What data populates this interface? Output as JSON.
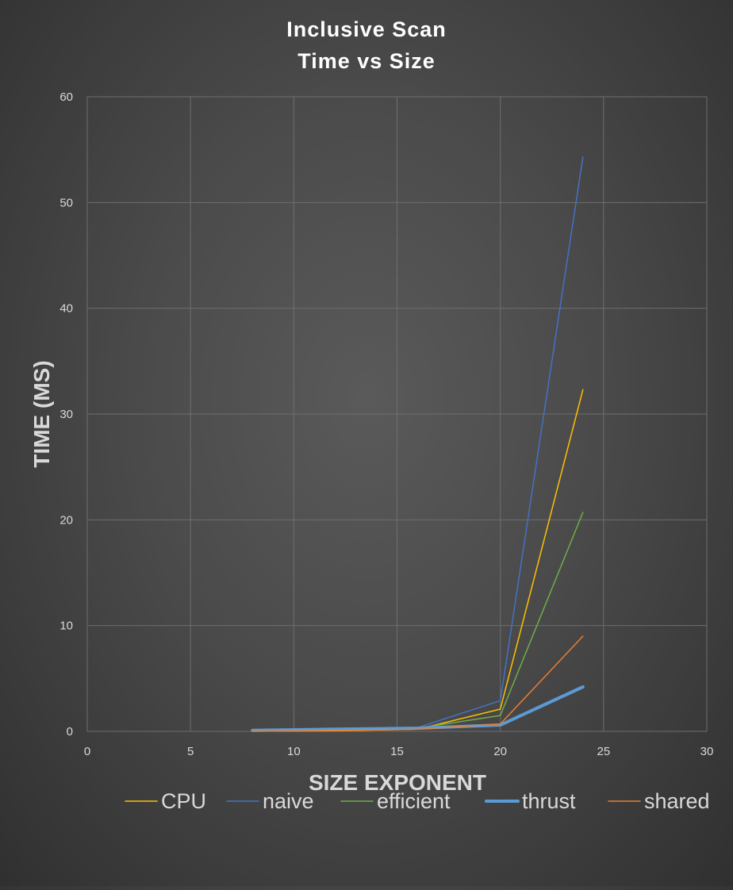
{
  "chart_data": {
    "type": "line",
    "title_lines": [
      "Inclusive Scan",
      "Time vs Size"
    ],
    "xlabel": "SIZE EXPONENT",
    "ylabel": "TIME (MS)",
    "xlim": [
      0,
      30
    ],
    "ylim": [
      0,
      60
    ],
    "x_ticks": [
      0,
      5,
      10,
      15,
      20,
      25,
      30
    ],
    "y_ticks": [
      0,
      10,
      20,
      30,
      40,
      50,
      60
    ],
    "grid": true,
    "legend_position": "bottom",
    "x": [
      8,
      12,
      16,
      20,
      24
    ],
    "series": [
      {
        "name": "CPU",
        "color": "#ffc000",
        "width": 1.5,
        "values": [
          0.01,
          0.05,
          0.2,
          2.1,
          32.3
        ]
      },
      {
        "name": "naive",
        "color": "#4472c4",
        "width": 1.5,
        "values": [
          0.05,
          0.15,
          0.35,
          2.9,
          54.3
        ]
      },
      {
        "name": "efficient",
        "color": "#70ad47",
        "width": 1.5,
        "values": [
          0.05,
          0.12,
          0.3,
          1.5,
          20.7
        ]
      },
      {
        "name": "thrust",
        "color": "#5b9bd5",
        "width": 4,
        "values": [
          0.1,
          0.2,
          0.3,
          0.6,
          4.2
        ]
      },
      {
        "name": "shared",
        "color": "#ed7d31",
        "width": 1.5,
        "values": [
          0.02,
          0.08,
          0.2,
          0.7,
          9.0
        ]
      }
    ]
  }
}
